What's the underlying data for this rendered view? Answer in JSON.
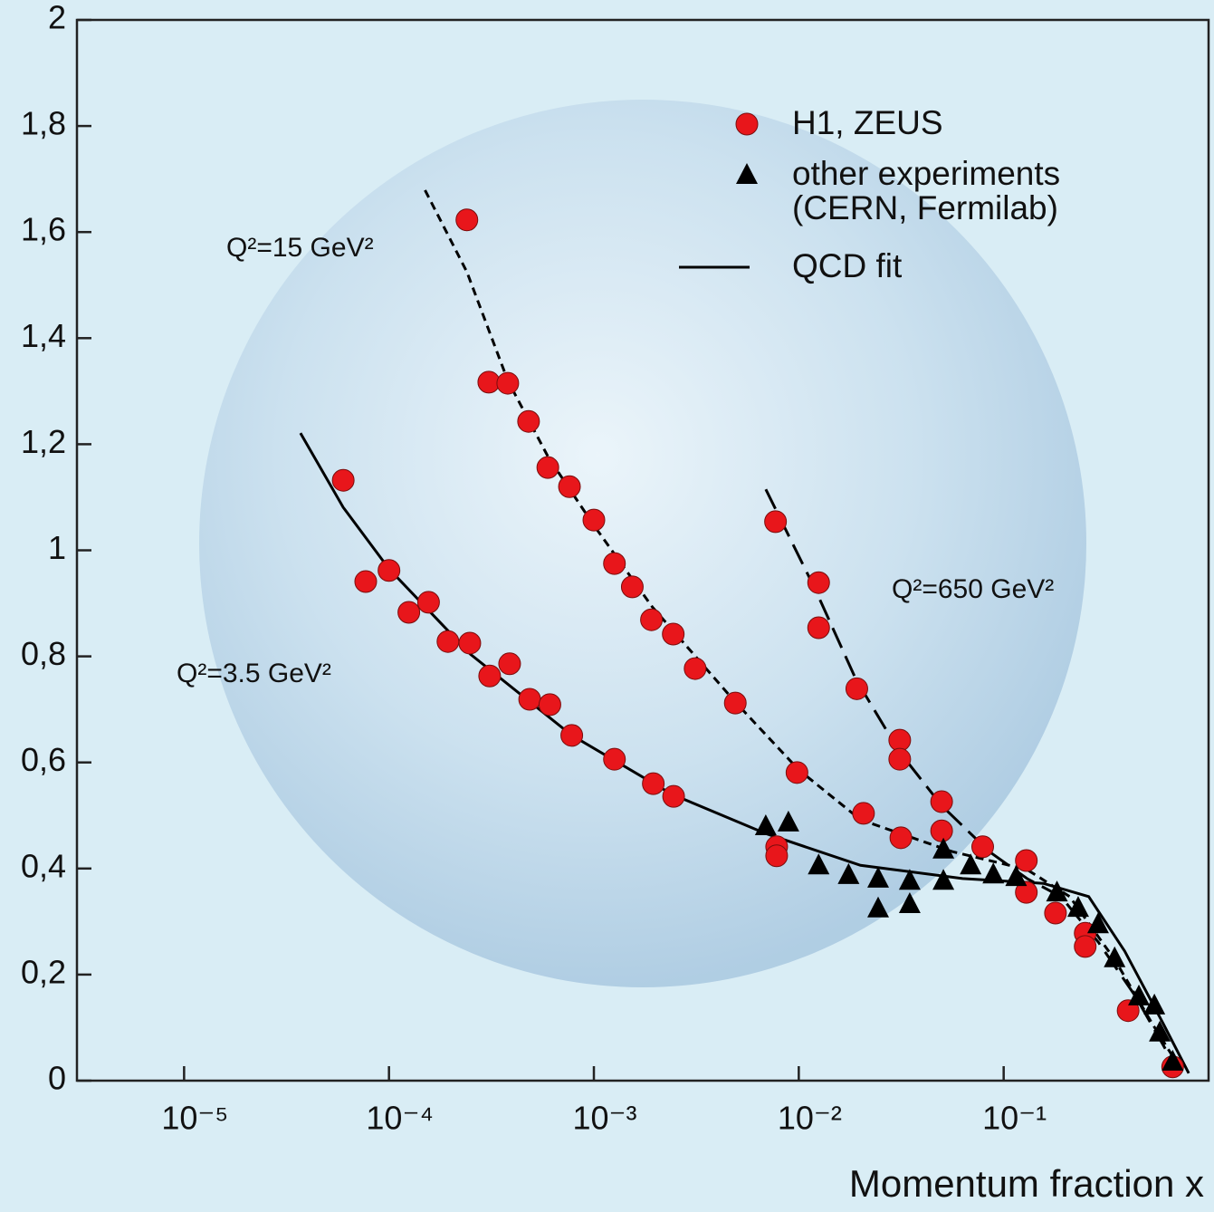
{
  "chart_data": {
    "type": "scatter",
    "x_label": "Momentum fraction x",
    "xscale": "log",
    "xlim": [
      3e-06,
      1
    ],
    "xticks": [
      {
        "value": 1e-05,
        "label": "10⁻⁵"
      },
      {
        "value": 0.0001,
        "label": "10⁻⁴"
      },
      {
        "value": 0.001,
        "label": "10⁻³"
      },
      {
        "value": 0.01,
        "label": "10⁻²"
      },
      {
        "value": 0.1,
        "label": "10⁻¹"
      }
    ],
    "ylim": [
      0,
      2
    ],
    "yticks": [
      0,
      {
        "value": 0.2,
        "label": "0,2"
      },
      {
        "value": 0.4,
        "label": "0,4"
      },
      {
        "value": 0.6,
        "label": "0,6"
      },
      {
        "value": 0.8,
        "label": "0,8"
      },
      1,
      {
        "value": 1.2,
        "label": "1,2"
      },
      {
        "value": 1.4,
        "label": "1,4"
      },
      {
        "value": 1.6,
        "label": "1,6"
      },
      {
        "value": 1.8,
        "label": "1,8"
      },
      2
    ],
    "legend": "upper right",
    "series": [
      {
        "name": "H1, ZEUS",
        "marker": "circle",
        "color": "#e8161b",
        "x": [
          5.98e-05,
          7.7e-05,
          0.0001,
          0.000125,
          0.000156,
          0.000194,
          0.000248,
          0.00031,
          0.000388,
          0.000486,
          0.00061,
          0.00078,
          0.00126,
          0.00195,
          0.00245,
          0.0078,
          0.0078,
          0.00024,
          0.000307,
          0.00038,
          0.00048,
          0.000596,
          0.00076,
          0.001,
          0.00126,
          0.00154,
          0.00191,
          0.00244,
          0.00312,
          0.0049,
          0.0098,
          0.0207,
          0.079,
          0.129,
          0.0077,
          0.0125,
          0.0125,
          0.0192,
          0.0311,
          0.0311,
          0.0315,
          0.0498,
          0.0498,
          0.129,
          0.179,
          0.25,
          0.25,
          0.405,
          0.668
        ],
        "values": [
          1.132,
          0.941,
          0.962,
          0.883,
          0.902,
          0.828,
          0.825,
          0.763,
          0.786,
          0.719,
          0.709,
          0.651,
          0.606,
          0.56,
          0.536,
          0.441,
          0.424,
          1.623,
          1.317,
          1.315,
          1.243,
          1.156,
          1.12,
          1.057,
          0.975,
          0.931,
          0.869,
          0.842,
          0.777,
          0.712,
          0.581,
          0.504,
          0.441,
          0.415,
          1.054,
          0.939,
          0.854,
          0.739,
          0.642,
          0.606,
          0.458,
          0.526,
          0.471,
          0.355,
          0.316,
          0.278,
          0.253,
          0.132,
          0.026
        ]
      },
      {
        "name": "other experiments\n(CERN, Fermilab)",
        "marker": "triangle",
        "color": "#000000",
        "x": [
          0.0069,
          0.0089,
          0.0125,
          0.0175,
          0.0244,
          0.0244,
          0.0348,
          0.0348,
          0.0508,
          0.0508,
          0.069,
          0.089,
          0.115,
          0.182,
          0.231,
          0.289,
          0.348,
          0.457,
          0.544,
          0.578,
          0.668
        ],
        "values": [
          0.48,
          0.487,
          0.406,
          0.388,
          0.381,
          0.325,
          0.377,
          0.333,
          0.377,
          0.436,
          0.406,
          0.389,
          0.384,
          0.355,
          0.326,
          0.295,
          0.231,
          0.159,
          0.142,
          0.091,
          0.036
        ]
      },
      {
        "name": "QCD fit",
        "marker": "line",
        "color": "#000000",
        "curves": [
          {
            "dash": "solid",
            "x": [
              3.7e-05,
              5.98e-05,
              0.0001,
              0.00025,
              0.00078,
              0.0024,
              0.0069,
              0.02,
              0.063,
              0.156,
              0.26,
              0.39,
              0.6,
              0.8
            ],
            "values": [
              1.221,
              1.081,
              0.965,
              0.804,
              0.651,
              0.54,
              0.466,
              0.406,
              0.381,
              0.372,
              0.347,
              0.244,
              0.108,
              0.014
            ]
          },
          {
            "dash": "dashed",
            "x": [
              0.00015,
              0.00024,
              0.00038,
              0.0006,
              0.001,
              0.00193,
              0.0049,
              0.01,
              0.02,
              0.056,
              0.13,
              0.21,
              0.35,
              0.53,
              0.73
            ],
            "values": [
              1.679,
              1.525,
              1.32,
              1.175,
              1.047,
              0.893,
              0.714,
              0.586,
              0.492,
              0.432,
              0.398,
              0.347,
              0.227,
              0.108,
              0.022
            ]
          },
          {
            "dash": "long-dashed",
            "x": [
              0.0069,
              0.012,
              0.019,
              0.031,
              0.05,
              0.085,
              0.13,
              0.19,
              0.29,
              0.44,
              0.66
            ],
            "values": [
              1.115,
              0.927,
              0.757,
              0.62,
              0.518,
              0.432,
              0.381,
              0.347,
              0.261,
              0.159,
              0.039
            ]
          }
        ]
      }
    ],
    "annotations": [
      "Q²=15 GeV²",
      "Q²=650 GeV²",
      "Q²=3.5 GeV²"
    ]
  }
}
